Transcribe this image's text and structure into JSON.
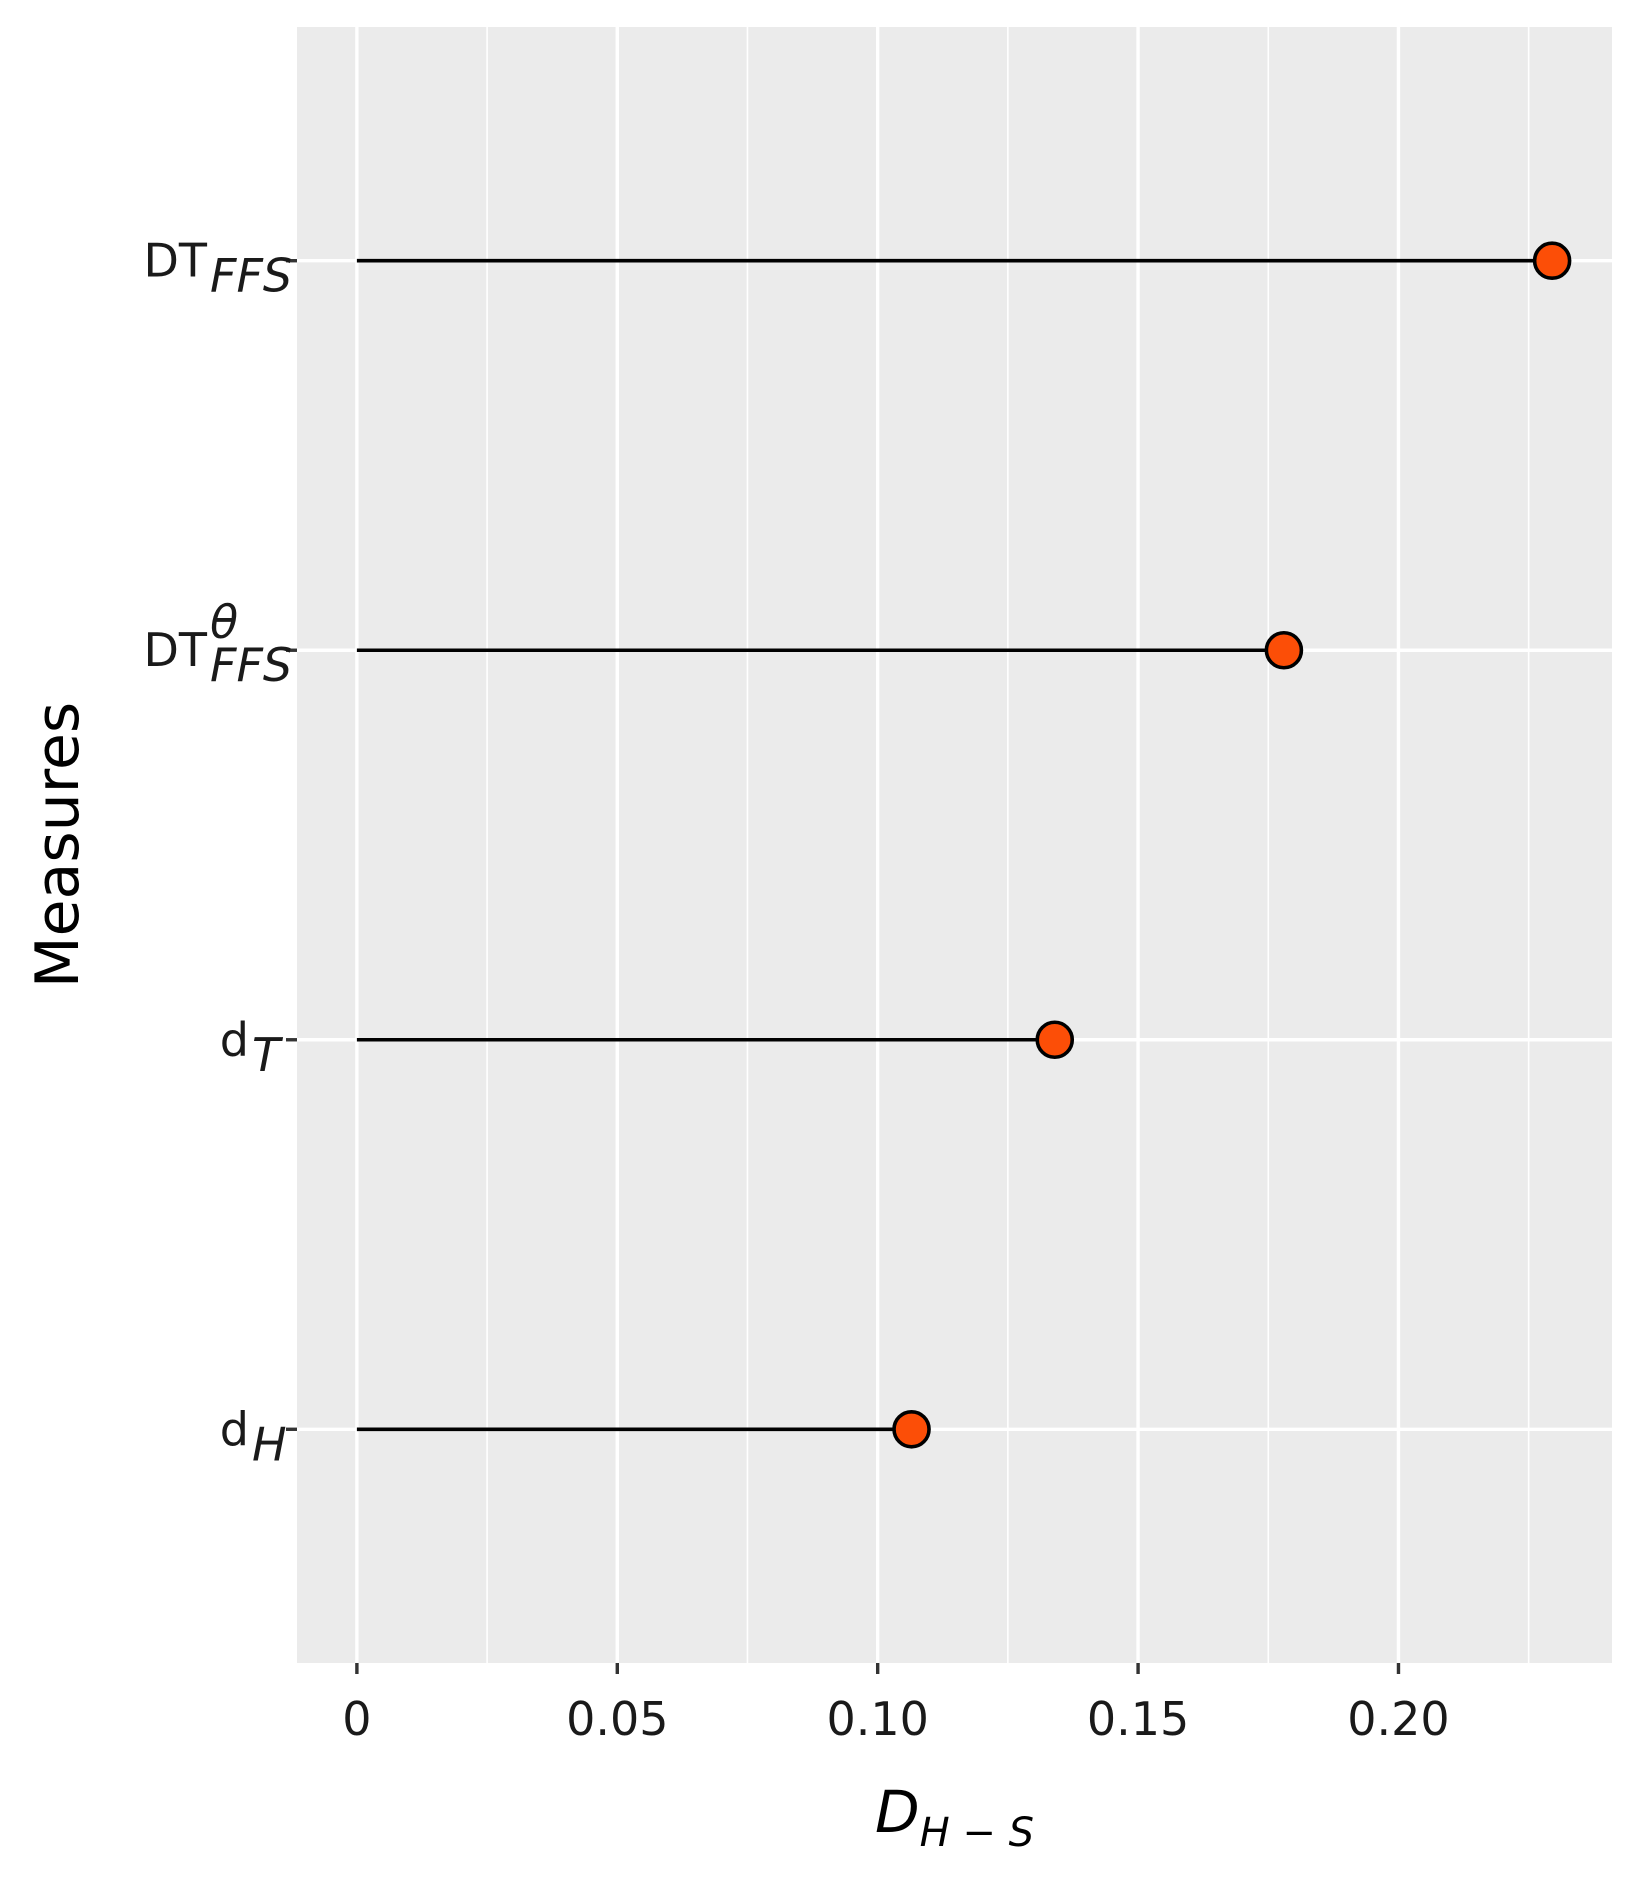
{
  "colors": {
    "panel_background": "#EBEBEB",
    "grid_line": "#FFFFFF",
    "stem_line": "#000000",
    "point_fill": "#FC4E07",
    "point_stroke": "#000000",
    "tick_mark": "#333333",
    "tick_text": "#1A1A1A"
  },
  "chart_data": {
    "type": "lollipop",
    "orientation": "horizontal",
    "xlabel": {
      "main": "D",
      "sub": "H − S"
    },
    "ylabel": "Measures",
    "xlim": [
      -0.0115,
      0.241
    ],
    "x_ticks": [
      {
        "value": 0,
        "label": "0"
      },
      {
        "value": 0.05,
        "label": "0.05"
      },
      {
        "value": 0.1,
        "label": "0.10"
      },
      {
        "value": 0.15,
        "label": "0.15"
      },
      {
        "value": 0.2,
        "label": "0.20"
      }
    ],
    "x_minor_grid": [
      0.025,
      0.075,
      0.125,
      0.175,
      0.225
    ],
    "grid": true,
    "legend": "none",
    "categories": [
      {
        "base": "DT",
        "sub": "FFS",
        "sup": "",
        "value": 0.2295
      },
      {
        "base": "DT",
        "sub": "FFS",
        "sup": "θ",
        "value": 0.178
      },
      {
        "base": "d",
        "sub": "T",
        "sup": "",
        "value": 0.134
      },
      {
        "base": "d",
        "sub": "H",
        "sup": "",
        "value": 0.1065
      }
    ]
  }
}
